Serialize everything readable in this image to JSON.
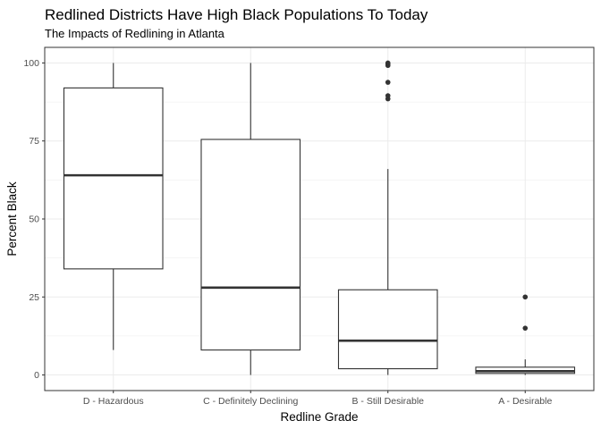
{
  "chart_data": {
    "type": "boxplot",
    "title": "Redlined Districts Have High Black Populations To Today",
    "subtitle": "The Impacts of Redlining in Atlanta",
    "xlabel": "Redline Grade",
    "ylabel": "Percent Black",
    "ylim": [
      -5,
      105
    ],
    "yticks": [
      0,
      25,
      50,
      75,
      100
    ],
    "grid": true,
    "categories": [
      "D - Hazardous",
      "C - Definitely Declining",
      "B - Still Desirable",
      "A - Desirable"
    ],
    "boxes": [
      {
        "category": "D - Hazardous",
        "min": 8,
        "q1": 34,
        "median": 64,
        "q3": 92,
        "max": 100,
        "outliers": []
      },
      {
        "category": "C - Definitely Declining",
        "min": 0,
        "q1": 8,
        "median": 28,
        "q3": 75.5,
        "max": 100,
        "outliers": []
      },
      {
        "category": "B - Still Desirable",
        "min": 0,
        "q1": 2,
        "median": 11,
        "q3": 27.3,
        "max": 66,
        "outliers": [
          88.5,
          89.5,
          93.8,
          99.2,
          99.6,
          100
        ]
      },
      {
        "category": "A - Desirable",
        "min": 0,
        "q1": 0.5,
        "median": 1.2,
        "q3": 2.5,
        "max": 5,
        "outliers": [
          15,
          25
        ]
      }
    ],
    "colors": {
      "box_fill": "#ffffff",
      "box_stroke": "#333333",
      "grid": "#ebebeb",
      "panel_border": "#333333",
      "point": "#333333"
    }
  }
}
